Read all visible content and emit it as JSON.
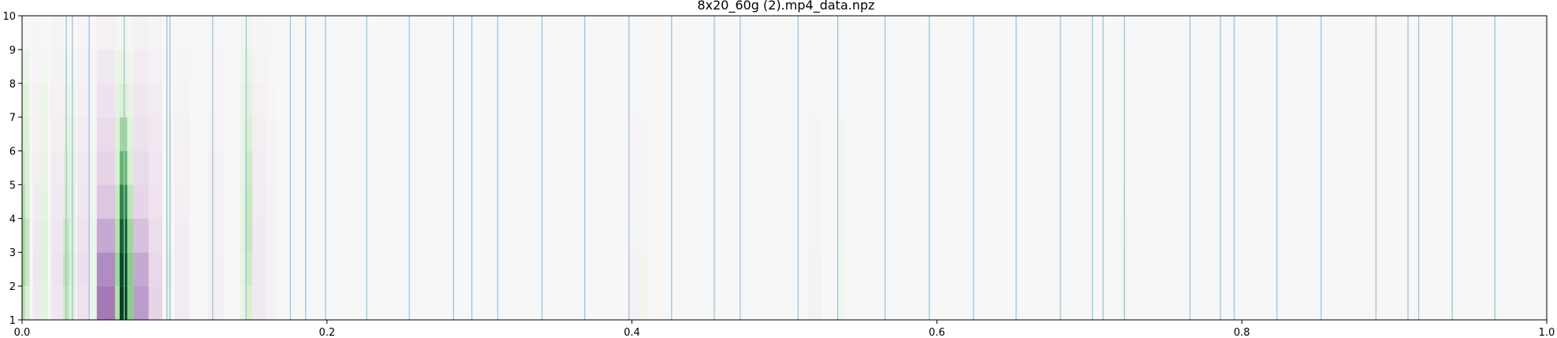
{
  "chart_data": {
    "type": "heatmap",
    "title": "8x20_60g (2).mp4_data.npz",
    "xlabel": "",
    "ylabel": "",
    "xlim": [
      0.0,
      1.0
    ],
    "ylim": [
      1,
      10
    ],
    "x_ticks": [
      "0.0",
      "0.2",
      "0.4",
      "0.6",
      "0.8",
      "1.0"
    ],
    "y_ticks": [
      "1",
      "2",
      "3",
      "4",
      "5",
      "6",
      "7",
      "8",
      "9",
      "10"
    ],
    "grid": false,
    "colormap": "PRGn",
    "background_color": "#f7f7f7",
    "vline_color": "#9ec3dc",
    "vlines": [
      0.029,
      0.033,
      0.044,
      0.067,
      0.095,
      0.097,
      0.125,
      0.147,
      0.176,
      0.186,
      0.199,
      0.226,
      0.254,
      0.283,
      0.295,
      0.312,
      0.341,
      0.369,
      0.398,
      0.426,
      0.454,
      0.471,
      0.509,
      0.535,
      0.566,
      0.595,
      0.624,
      0.652,
      0.681,
      0.702,
      0.709,
      0.723,
      0.766,
      0.786,
      0.795,
      0.823,
      0.852,
      0.888,
      0.909,
      0.916,
      0.938,
      0.966
    ],
    "bands": [
      {
        "x0": 0.0,
        "x1": 0.002,
        "values": [
          0.35,
          0.4,
          0.4,
          0.35,
          0.3,
          0.25,
          0.2,
          0.1,
          0.0
        ]
      },
      {
        "x0": 0.002,
        "x1": 0.005,
        "values": [
          0.25,
          0.3,
          0.3,
          0.25,
          0.25,
          0.2,
          0.15,
          0.08,
          0.0
        ]
      },
      {
        "x0": 0.007,
        "x1": 0.012,
        "values": [
          -0.1,
          -0.12,
          -0.1,
          -0.08,
          -0.06,
          -0.05,
          -0.04,
          -0.03,
          -0.02
        ]
      },
      {
        "x0": 0.012,
        "x1": 0.017,
        "values": [
          0.15,
          0.18,
          0.18,
          0.15,
          0.12,
          0.1,
          0.08,
          0.05,
          0.0
        ]
      },
      {
        "x0": 0.019,
        "x1": 0.027,
        "values": [
          -0.12,
          -0.14,
          -0.12,
          -0.1,
          -0.08,
          -0.06,
          -0.05,
          -0.04,
          -0.03
        ]
      },
      {
        "x0": 0.027,
        "x1": 0.031,
        "values": [
          0.3,
          0.32,
          0.3,
          0.25,
          0.2,
          0.15,
          0.1,
          0.05,
          0.0
        ]
      },
      {
        "x0": 0.031,
        "x1": 0.035,
        "values": [
          0.22,
          0.25,
          0.22,
          0.2,
          0.18,
          0.15,
          0.1,
          0.05,
          0.0
        ]
      },
      {
        "x0": 0.036,
        "x1": 0.044,
        "values": [
          -0.15,
          -0.17,
          -0.15,
          -0.12,
          -0.1,
          -0.08,
          -0.06,
          -0.04,
          -0.02
        ]
      },
      {
        "x0": 0.044,
        "x1": 0.049,
        "values": [
          0.1,
          0.12,
          0.1,
          0.08,
          0.06,
          0.05,
          0.03,
          0.02,
          0.0
        ]
      },
      {
        "x0": 0.049,
        "x1": 0.061,
        "values": [
          -0.55,
          -0.5,
          -0.4,
          -0.3,
          -0.25,
          -0.2,
          -0.15,
          -0.1,
          -0.05
        ]
      },
      {
        "x0": 0.061,
        "x1": 0.064,
        "values": [
          0.35,
          0.4,
          0.35,
          0.3,
          0.25,
          0.2,
          0.15,
          0.08,
          0.03
        ]
      },
      {
        "x0": 0.064,
        "x1": 0.069,
        "values": [
          1.0,
          0.95,
          0.85,
          0.7,
          0.55,
          0.4,
          0.25,
          0.12,
          0.05
        ]
      },
      {
        "x0": 0.069,
        "x1": 0.073,
        "values": [
          0.45,
          0.45,
          0.4,
          0.32,
          0.25,
          0.18,
          0.12,
          0.06,
          0.02
        ]
      },
      {
        "x0": 0.073,
        "x1": 0.083,
        "values": [
          -0.45,
          -0.4,
          -0.32,
          -0.25,
          -0.2,
          -0.15,
          -0.12,
          -0.08,
          -0.04
        ]
      },
      {
        "x0": 0.083,
        "x1": 0.092,
        "values": [
          -0.25,
          -0.22,
          -0.18,
          -0.14,
          -0.12,
          -0.1,
          -0.08,
          -0.05,
          -0.03
        ]
      },
      {
        "x0": 0.094,
        "x1": 0.098,
        "values": [
          0.12,
          0.14,
          0.12,
          0.1,
          0.08,
          0.07,
          0.05,
          0.03,
          0.02
        ]
      },
      {
        "x0": 0.1,
        "x1": 0.11,
        "values": [
          -0.08,
          -0.08,
          -0.07,
          -0.06,
          -0.05,
          -0.04,
          -0.03,
          -0.02,
          -0.01
        ]
      },
      {
        "x0": 0.122,
        "x1": 0.132,
        "values": [
          -0.06,
          -0.06,
          -0.05,
          -0.05,
          -0.04,
          -0.03,
          -0.02,
          -0.02,
          -0.01
        ]
      },
      {
        "x0": 0.143,
        "x1": 0.146,
        "values": [
          0.12,
          0.14,
          0.15,
          0.15,
          0.14,
          0.12,
          0.1,
          0.07,
          0.04
        ]
      },
      {
        "x0": 0.146,
        "x1": 0.151,
        "values": [
          0.25,
          0.28,
          0.3,
          0.3,
          0.28,
          0.24,
          0.18,
          0.12,
          0.06
        ]
      },
      {
        "x0": 0.151,
        "x1": 0.16,
        "values": [
          -0.1,
          -0.1,
          -0.09,
          -0.08,
          -0.07,
          -0.06,
          -0.05,
          -0.03,
          -0.02
        ]
      },
      {
        "x0": 0.16,
        "x1": 0.166,
        "values": [
          -0.05,
          -0.05,
          -0.04,
          -0.04,
          -0.03,
          -0.03,
          -0.02,
          -0.01,
          -0.01
        ]
      },
      {
        "x0": 0.398,
        "x1": 0.404,
        "values": [
          -0.04,
          -0.04,
          -0.03,
          -0.03,
          -0.02,
          -0.02,
          -0.01,
          -0.01,
          0.0
        ]
      },
      {
        "x0": 0.404,
        "x1": 0.41,
        "values": [
          0.06,
          0.06,
          0.05,
          0.04,
          0.03,
          0.02,
          0.01,
          0.01,
          0.0
        ]
      },
      {
        "x0": 0.516,
        "x1": 0.524,
        "values": [
          -0.04,
          -0.04,
          -0.03,
          -0.03,
          -0.02,
          -0.02,
          -0.01,
          -0.01,
          0.0
        ]
      },
      {
        "x0": 0.535,
        "x1": 0.54,
        "values": [
          0.05,
          0.05,
          0.04,
          0.03,
          0.02,
          0.02,
          0.01,
          0.01,
          0.0
        ]
      },
      {
        "x0": 0.721,
        "x1": 0.726,
        "values": [
          0.05,
          0.05,
          0.04,
          0.03,
          0.02,
          0.02,
          0.01,
          0.01,
          0.0
        ]
      }
    ]
  }
}
